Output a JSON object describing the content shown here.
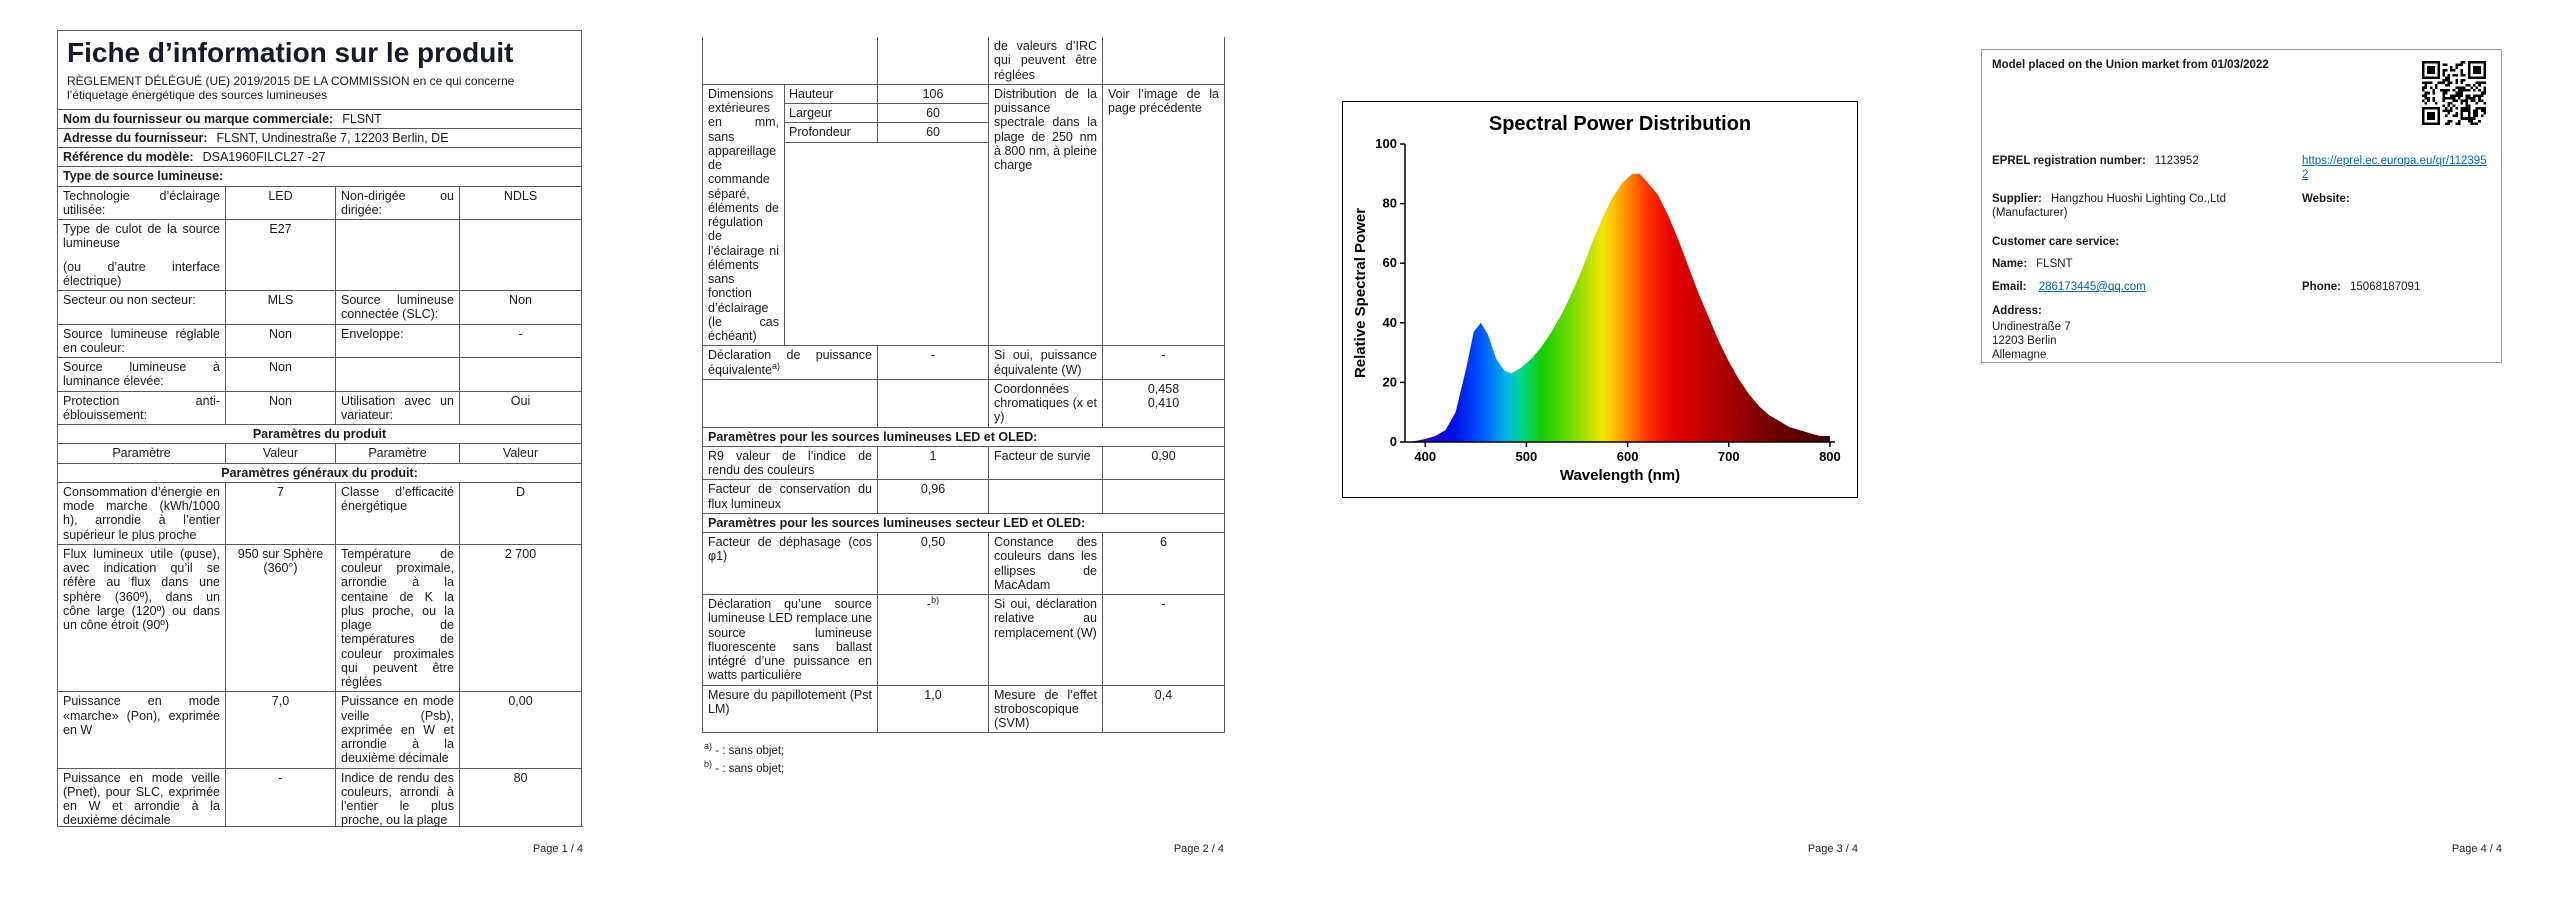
{
  "colors": {
    "link": "#0563c1",
    "title": "#161a2b",
    "table_border": "#5a5a5a"
  },
  "footers": [
    "Page 1 / 4",
    "Page 2 / 4",
    "Page 3 / 4",
    "Page 4 / 4"
  ],
  "page1": {
    "title": "Fiche d’information sur le produit",
    "subtitle": "RÈGLEMENT DÉLÉGUÉ (UE) 2019/2015 DE LA COMMISSION en ce qui concerne l’étiquetage énergétique des sources lumineuses",
    "supplier_name_label": "Nom du fournisseur ou marque commerciale:",
    "supplier_name_value": "FLSNT",
    "supplier_addr_label": "Adresse du fournisseur:",
    "supplier_addr_value": "FLSNT, Undinestraße 7, 12203 Berlin, DE",
    "model_ref_label": "Référence du modèle:",
    "model_ref_value": "DSA1960FILCL27 -27",
    "light_type_label": "Type de source lumineuse:",
    "rows": {
      "tech": {
        "l1": "Technologie d’éclairage utilisée:",
        "v1": "LED",
        "l2": "Non-dirigée ou dirigée:",
        "v2": "NDLS"
      },
      "cap": {
        "l1": "Type de culot de la source lumineuse",
        "l1b": "(ou d’autre interface électrique)",
        "v1": "E27",
        "l2": "",
        "v2": ""
      },
      "mains": {
        "l1": "Secteur ou non secteur:",
        "v1": "MLS",
        "l2": "Source lumineuse connectée (SLC):",
        "v2": "Non"
      },
      "colour": {
        "l1": "Source lumineuse réglable en couleur:",
        "v1": "Non",
        "l2": "Enveloppe:",
        "v2": "-"
      },
      "highlum": {
        "l1": "Source lumineuse à luminance élevée:",
        "v1": "Non",
        "l2": "",
        "v2": ""
      },
      "glare": {
        "l1": "Protection anti-éblouissement:",
        "v1": "Non",
        "l2": "Utilisation avec un variateur:",
        "v2": "Oui"
      }
    },
    "section_product": "Paramètres du produit",
    "col_headers": [
      "Paramètre",
      "Valeur",
      "Paramètre",
      "Valeur"
    ],
    "section_general": "Paramètres généraux du produit:",
    "params": {
      "energy": {
        "l1": "Consommation d’énergie en mode marche (kWh/1000 h), arrondie à l’entier supérieur le plus proche",
        "v1": "7",
        "l2": "Classe d’efficacité énergétique",
        "v2": "D"
      },
      "flux": {
        "l1": "Flux lumineux utile (φuse), avec indication qu’il se réfère au flux dans une sphère (360º), dans un cône large (120º) ou dans un cône étroit (90º)",
        "v1": "950 sur Sphère (360°)",
        "l2": "Température de couleur proximale, arrondie à la centaine de K la plus proche, ou la plage de températures de couleur proximales qui peuvent être réglées",
        "v2": "2 700"
      },
      "power_on": {
        "l1": "Puissance en mode «marche» (Pon), exprimée en W",
        "v1": "7,0",
        "l2": "Puissance en mode veille (Psb), exprimée en W et arrondie à la deuxième décimale",
        "v2": "0,00"
      },
      "power_sb": {
        "l1": "Puissance en mode veille (Pnet), pour SLC, exprimée en W et arrondie à la deuxième décimale",
        "v1": "-",
        "l2": "Indice de rendu des couleurs, arrondi à l’entier le plus proche, ou la plage",
        "v2": "80"
      }
    }
  },
  "page2": {
    "cri_continuation": "de valeurs d’IRC qui peuvent être réglées",
    "dimensions": {
      "label": "Dimensions extérieures en mm, sans appareillage de commande séparé, éléments de régulation de l’éclairage ni éléments sans fonction d’éclairage (le cas échéant)",
      "h_label": "Hauteur",
      "h_value": "106",
      "w_label": "Largeur",
      "w_value": "60",
      "d_label": "Profondeur",
      "d_value": "60",
      "l2": "Distribution de la puissance spectrale dans la plage de 250 nm à 800 nm, à pleine charge",
      "v2": "Voir l’image de la page précédente"
    },
    "rows": {
      "equiv": {
        "l1": "Déclaration de puissance équivalente",
        "l1sup": "a)",
        "v1": "-",
        "l2": "Si oui, puissance équivalente (W)",
        "v2": "-"
      },
      "chroma": {
        "l1": "",
        "v1": "",
        "l2": "Coordonnées chromatiques (x et y)",
        "v2a": "0,458",
        "v2b": "0,410"
      },
      "r9": {
        "l1": "R9 valeur de l’indice de rendu des couleurs",
        "v1": "1",
        "l2": "Facteur de survie",
        "v2": "0,90"
      },
      "lumen": {
        "l1": "Facteur de conservation du flux lumineux",
        "v1": "0,96",
        "l2": "",
        "v2": ""
      },
      "cos": {
        "l1": "Facteur de déphasage (cos φ1)",
        "v1": "0,50",
        "l2": "Constance des couleurs dans les ellipses de MacAdam",
        "v2": "6"
      },
      "fluoro": {
        "l1": "Déclaration qu’une source lumineuse LED remplace une source lumineuse fluorescente sans ballast intégré d’une puissance en watts particulière",
        "v1": "-",
        "v1sup": "b)",
        "l2": "Si oui, déclaration relative au remplacement (W)",
        "v2": "-"
      },
      "flicker": {
        "l1": "Mesure du papillotement (Pst LM)",
        "v1": "1,0",
        "l2": "Mesure de l’effet stroboscopique (SVM)",
        "v2": "0,4"
      }
    },
    "section_led": "Paramètres pour les sources lumineuses LED et OLED:",
    "section_mains_led": "Paramètres pour les sources lumineuses secteur LED et OLED:",
    "footnotes": {
      "a_sup": "a)",
      "a_text": "- : sans objet;",
      "b_sup": "b)",
      "b_text": "- : sans objet;"
    }
  },
  "chart_data": {
    "type": "area",
    "title": "Spectral Power Distribution",
    "xlabel": "Wavelength (nm)",
    "ylabel": "Relative Spectral Power",
    "xlim": [
      380,
      805
    ],
    "ylim": [
      0,
      100
    ],
    "xticks": [
      400,
      500,
      600,
      700,
      800
    ],
    "yticks": [
      0,
      20,
      40,
      60,
      80,
      100
    ],
    "grid": false,
    "legend": false,
    "series": [
      {
        "name": "relative spectral power",
        "points": [
          [
            385,
            0
          ],
          [
            400,
            1
          ],
          [
            410,
            2
          ],
          [
            420,
            4
          ],
          [
            430,
            10
          ],
          [
            440,
            24
          ],
          [
            448,
            37
          ],
          [
            455,
            40
          ],
          [
            462,
            36
          ],
          [
            470,
            28
          ],
          [
            478,
            24
          ],
          [
            485,
            23
          ],
          [
            495,
            25
          ],
          [
            505,
            28
          ],
          [
            515,
            32
          ],
          [
            525,
            37
          ],
          [
            535,
            43
          ],
          [
            545,
            50
          ],
          [
            555,
            58
          ],
          [
            565,
            67
          ],
          [
            575,
            75
          ],
          [
            585,
            82
          ],
          [
            595,
            87
          ],
          [
            605,
            90
          ],
          [
            612,
            90
          ],
          [
            620,
            87
          ],
          [
            630,
            83
          ],
          [
            640,
            76
          ],
          [
            650,
            68
          ],
          [
            660,
            59
          ],
          [
            670,
            50
          ],
          [
            680,
            42
          ],
          [
            690,
            34
          ],
          [
            700,
            27
          ],
          [
            710,
            21
          ],
          [
            720,
            16
          ],
          [
            730,
            12
          ],
          [
            740,
            9
          ],
          [
            750,
            7
          ],
          [
            760,
            5
          ],
          [
            770,
            4
          ],
          [
            780,
            3
          ],
          [
            790,
            2
          ],
          [
            800,
            2
          ]
        ]
      }
    ],
    "spectrum_gradient": [
      {
        "wl": 385,
        "color": "#3300b3"
      },
      {
        "wl": 430,
        "color": "#0011e6"
      },
      {
        "wl": 455,
        "color": "#0055ff"
      },
      {
        "wl": 480,
        "color": "#00b3e6"
      },
      {
        "wl": 495,
        "color": "#00d98c"
      },
      {
        "wl": 515,
        "color": "#14cc00"
      },
      {
        "wl": 540,
        "color": "#66d900"
      },
      {
        "wl": 560,
        "color": "#b3e000"
      },
      {
        "wl": 575,
        "color": "#f2e600"
      },
      {
        "wl": 590,
        "color": "#ffb300"
      },
      {
        "wl": 605,
        "color": "#ff7300"
      },
      {
        "wl": 620,
        "color": "#ff2e00"
      },
      {
        "wl": 645,
        "color": "#e60000"
      },
      {
        "wl": 690,
        "color": "#b30000"
      },
      {
        "wl": 740,
        "color": "#730000"
      },
      {
        "wl": 800,
        "color": "#400000"
      }
    ]
  },
  "page4": {
    "market_note": "Model placed on the Union market from 01/03/2022",
    "eprel_label": "EPREL registration number:",
    "eprel_value": "1123952",
    "eprel_link": "https://eprel.ec.europa.eu/qr/1123952",
    "supplier_label": "Supplier:",
    "supplier_value": "Hangzhou Huoshi Lighting Co.,Ltd (Manufacturer)",
    "website_label": "Website:",
    "customer_care_label": "Customer care service:",
    "name_label": "Name:",
    "name_value": "FLSNT",
    "email_label": "Email:",
    "email_value": "286173445@qq.com",
    "phone_label": "Phone:",
    "phone_value": "15068187091",
    "address_label": "Address:",
    "address_line1": "Undinestraße 7",
    "address_line2": "12203 Berlin",
    "address_line3": "Allemagne",
    "qr_icon": "qr-code"
  }
}
